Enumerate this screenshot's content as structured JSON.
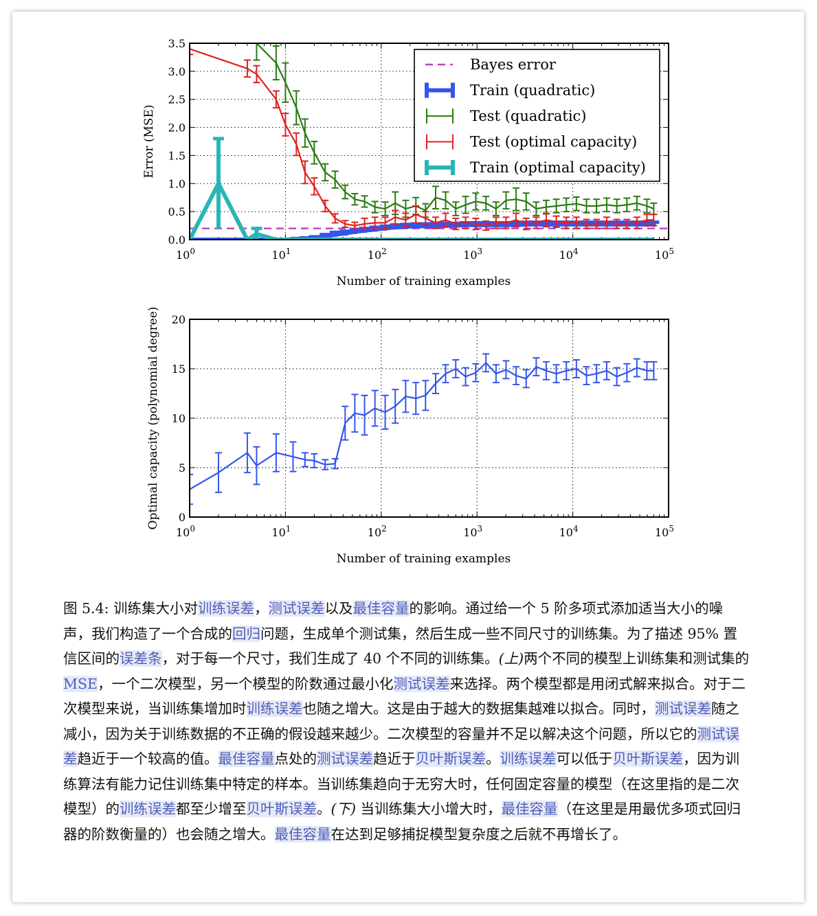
{
  "chart_data": [
    {
      "type": "line",
      "xscale": "log",
      "xlim": [
        1,
        100000
      ],
      "ylim": [
        0,
        3.5
      ],
      "xlabel": "Number of training examples",
      "ylabel": "Error (MSE)",
      "grid": true,
      "legend_position": "top-right",
      "xticks": [
        "10^0",
        "10^1",
        "10^2",
        "10^3",
        "10^4",
        "10^5"
      ],
      "yticks": [
        "0.0",
        "0.5",
        "1.0",
        "1.5",
        "2.0",
        "2.5",
        "3.0",
        "3.5"
      ],
      "bayes_error": 0.2,
      "series": [
        {
          "name": "Bayes error",
          "color": "#bf40bf",
          "style": "dashed"
        },
        {
          "name": "Train (quadratic)",
          "color": "#3355ee",
          "style": "thick",
          "x": [
            1,
            2,
            4,
            5,
            8,
            10,
            13,
            16,
            20,
            26,
            33,
            42,
            53,
            67,
            86,
            110,
            140,
            180,
            230,
            290,
            370,
            470,
            600,
            760,
            970,
            1240,
            1580,
            2010,
            2560,
            3260,
            4150,
            5280,
            6730,
            8570,
            10900,
            13900,
            17700,
            22600,
            28800,
            36700,
            46700,
            59400,
            70000
          ],
          "y": [
            0,
            0,
            0,
            0,
            0,
            0,
            0.01,
            0.02,
            0.03,
            0.06,
            0.09,
            0.11,
            0.14,
            0.16,
            0.18,
            0.2,
            0.22,
            0.23,
            0.24,
            0.24,
            0.25,
            0.25,
            0.25,
            0.26,
            0.26,
            0.26,
            0.26,
            0.26,
            0.26,
            0.27,
            0.27,
            0.27,
            0.27,
            0.27,
            0.27,
            0.27,
            0.27,
            0.27,
            0.27,
            0.27,
            0.27,
            0.27,
            0.27
          ],
          "err": [
            0,
            0,
            0,
            0,
            0,
            0,
            0.01,
            0.01,
            0.02,
            0.03,
            0.04,
            0.04,
            0.04,
            0.04,
            0.04,
            0.04,
            0.04,
            0.04,
            0.04,
            0.04,
            0.04,
            0.04,
            0.04,
            0.04,
            0.04,
            0.04,
            0.04,
            0.04,
            0.04,
            0.04,
            0.04,
            0.04,
            0.04,
            0.04,
            0.04,
            0.04,
            0.04,
            0.04,
            0.04,
            0.04,
            0.04,
            0.04,
            0.04
          ]
        },
        {
          "name": "Test (quadratic)",
          "color": "#2a7a12",
          "style": "errorbar",
          "x": [
            4,
            5,
            8,
            10,
            13,
            16,
            20,
            26,
            33,
            42,
            53,
            67,
            86,
            110,
            140,
            180,
            230,
            290,
            370,
            470,
            600,
            760,
            970,
            1240,
            1580,
            2010,
            2560,
            3260,
            4150,
            5280,
            6730,
            8570,
            10900,
            13900,
            17700,
            22600,
            28800,
            36700,
            46700,
            59400,
            70000
          ],
          "y": [
            4.2,
            3.5,
            3.15,
            2.8,
            2.35,
            1.9,
            1.55,
            1.2,
            1.07,
            0.85,
            0.72,
            0.68,
            0.58,
            0.55,
            0.65,
            0.55,
            0.6,
            0.52,
            0.75,
            0.7,
            0.55,
            0.62,
            0.68,
            0.65,
            0.55,
            0.7,
            0.72,
            0.68,
            0.55,
            0.58,
            0.6,
            0.62,
            0.64,
            0.6,
            0.6,
            0.62,
            0.6,
            0.62,
            0.65,
            0.6,
            0.55
          ],
          "err": [
            0.4,
            0.3,
            0.3,
            0.35,
            0.3,
            0.25,
            0.2,
            0.15,
            0.15,
            0.12,
            0.1,
            0.1,
            0.1,
            0.12,
            0.2,
            0.15,
            0.15,
            0.12,
            0.2,
            0.15,
            0.12,
            0.15,
            0.15,
            0.12,
            0.12,
            0.15,
            0.2,
            0.15,
            0.12,
            0.12,
            0.12,
            0.12,
            0.12,
            0.12,
            0.12,
            0.12,
            0.12,
            0.12,
            0.12,
            0.12,
            0.1
          ]
        },
        {
          "name": "Test (optimal capacity)",
          "color": "#e02020",
          "style": "errorbar",
          "x": [
            1,
            4,
            5,
            8,
            10,
            13,
            16,
            20,
            26,
            33,
            42,
            53,
            67,
            86,
            110,
            140,
            180,
            230,
            290,
            370,
            470,
            600,
            760,
            970,
            1240,
            1580,
            2010,
            2560,
            3260,
            4150,
            5280,
            6730,
            8570,
            10900,
            13900,
            17700,
            22600,
            28800,
            36700,
            46700,
            59400,
            70000
          ],
          "y": [
            3.4,
            3.05,
            2.95,
            2.5,
            2.05,
            1.7,
            1.2,
            0.95,
            0.6,
            0.38,
            0.28,
            0.25,
            0.28,
            0.3,
            0.3,
            0.4,
            0.35,
            0.45,
            0.38,
            0.3,
            0.35,
            0.28,
            0.3,
            0.28,
            0.25,
            0.3,
            0.3,
            0.35,
            0.28,
            0.3,
            0.35,
            0.32,
            0.3,
            0.3,
            0.28,
            0.28,
            0.3,
            0.28,
            0.28,
            0.3,
            0.35,
            0.35
          ],
          "err": [
            0.1,
            0.15,
            0.15,
            0.15,
            0.2,
            0.2,
            0.2,
            0.15,
            0.1,
            0.08,
            0.06,
            0.06,
            0.1,
            0.1,
            0.1,
            0.12,
            0.12,
            0.15,
            0.12,
            0.1,
            0.12,
            0.1,
            0.1,
            0.1,
            0.08,
            0.1,
            0.1,
            0.12,
            0.1,
            0.1,
            0.12,
            0.1,
            0.1,
            0.1,
            0.08,
            0.08,
            0.1,
            0.08,
            0.08,
            0.1,
            0.1,
            0.1
          ]
        },
        {
          "name": "Train (optimal capacity)",
          "color": "#2ab5b5",
          "style": "thick",
          "x": [
            1,
            2,
            4,
            5,
            8,
            10,
            13,
            16,
            20,
            26,
            33,
            42,
            53,
            67,
            86,
            110,
            140,
            180,
            230,
            290,
            370,
            470,
            600,
            760,
            970,
            1240,
            1580,
            2010,
            2560,
            3260,
            4150,
            5280,
            6730,
            8570,
            10900,
            13900,
            17700,
            22600,
            28800,
            36700,
            46700,
            59400,
            70000
          ],
          "y": [
            0,
            1.0,
            0,
            0.1,
            0,
            0,
            0,
            0,
            0,
            0,
            0,
            0,
            0,
            0,
            0,
            0,
            0,
            0,
            0,
            0,
            0,
            0,
            0,
            0,
            0,
            0,
            0,
            0,
            0,
            0,
            0,
            0,
            0,
            0,
            0,
            0,
            0,
            0,
            0,
            0,
            0,
            0,
            0
          ],
          "err": [
            0,
            0.8,
            0,
            0.1,
            0,
            0,
            0,
            0,
            0,
            0,
            0,
            0,
            0,
            0,
            0,
            0,
            0,
            0,
            0,
            0,
            0,
            0,
            0,
            0,
            0,
            0,
            0,
            0,
            0,
            0,
            0,
            0,
            0,
            0,
            0,
            0,
            0,
            0,
            0,
            0,
            0,
            0,
            0
          ]
        }
      ]
    },
    {
      "type": "line",
      "xscale": "log",
      "xlim": [
        1,
        100000
      ],
      "ylim": [
        0,
        20
      ],
      "xlabel": "Number of training examples",
      "ylabel": "Optimal capacity (polynomial degree)",
      "grid": true,
      "xticks": [
        "10^0",
        "10^1",
        "10^2",
        "10^3",
        "10^4",
        "10^5"
      ],
      "yticks": [
        "0",
        "5",
        "10",
        "15",
        "20"
      ],
      "series": [
        {
          "color": "#3355ee",
          "x": [
            1,
            2,
            4,
            5,
            8,
            12,
            16,
            20,
            26,
            33,
            42,
            53,
            67,
            86,
            110,
            140,
            180,
            230,
            290,
            370,
            470,
            600,
            760,
            970,
            1240,
            1580,
            2010,
            2560,
            3260,
            4150,
            5280,
            6730,
            8570,
            10900,
            13900,
            17700,
            22600,
            28800,
            36700,
            46700,
            59400,
            70000
          ],
          "y": [
            2.8,
            4.5,
            6.5,
            5.2,
            6.5,
            6.1,
            5.8,
            5.7,
            5.3,
            5.4,
            9.5,
            10.5,
            10.3,
            11.0,
            10.6,
            11.2,
            12.2,
            12.0,
            12.3,
            13.5,
            14.5,
            15.0,
            14.2,
            14.6,
            15.6,
            14.5,
            14.9,
            14.3,
            14.0,
            15.2,
            14.8,
            14.5,
            14.8,
            15.0,
            14.3,
            14.5,
            14.8,
            14.2,
            14.6,
            15.1,
            14.8,
            14.8
          ],
          "err": [
            1.5,
            2.0,
            2.0,
            1.9,
            1.9,
            1.5,
            0.7,
            0.7,
            0.5,
            0.5,
            1.7,
            1.9,
            2.0,
            1.8,
            1.7,
            1.7,
            1.6,
            1.6,
            1.5,
            1.0,
            0.9,
            0.9,
            0.9,
            0.9,
            0.9,
            0.9,
            0.9,
            0.9,
            0.9,
            0.9,
            0.9,
            0.9,
            0.9,
            0.9,
            0.9,
            0.9,
            0.9,
            0.9,
            0.9,
            0.9,
            0.9,
            0.9
          ]
        }
      ]
    }
  ],
  "caption": {
    "parts": [
      {
        "t": "图 5.4: 训练集大小对"
      },
      {
        "t": "训练误差",
        "h": true
      },
      {
        "t": "，"
      },
      {
        "t": "测试误差",
        "h": true
      },
      {
        "t": "以及"
      },
      {
        "t": "最佳容量",
        "h": true
      },
      {
        "t": "的影响。通过给一个 5 阶多项式添加适当大小的噪声，我们构造了一个合成的"
      },
      {
        "t": "回归",
        "h": true
      },
      {
        "t": "问题，生成单个测试集，然后生成一些不同尺寸的训练集。为了描述 95% 置信区间的"
      },
      {
        "t": "误差条",
        "h": true
      },
      {
        "t": "，对于每一个尺寸，我们生成了 40 个不同的训练集。"
      },
      {
        "t": "(上)",
        "i": true
      },
      {
        "t": "两个不同的模型上训练集和测试集的 "
      },
      {
        "t": "MSE",
        "h": true
      },
      {
        "t": "，一个二次模型，另一个模型的阶数通过最小化"
      },
      {
        "t": "测试误差",
        "h": true
      },
      {
        "t": "来选择。两个模型都是用闭式解来拟合。对于二次模型来说，当训练集增加时"
      },
      {
        "t": "训练误差",
        "h": true
      },
      {
        "t": "也随之增大。这是由于越大的数据集越难以拟合。同时，"
      },
      {
        "t": "测试误差",
        "h": true
      },
      {
        "t": "随之减小，因为关于训练数据的不正确的假设越来越少。二次模型的容量并不足以解决这个问题，所以它的"
      },
      {
        "t": "测试误差",
        "h": true
      },
      {
        "t": "趋近于一个较高的值。"
      },
      {
        "t": "最佳容量",
        "h": true
      },
      {
        "t": "点处的"
      },
      {
        "t": "测试误差",
        "h": true
      },
      {
        "t": "趋近于"
      },
      {
        "t": "贝叶斯误差",
        "h": true
      },
      {
        "t": "。"
      },
      {
        "t": "训练误差",
        "h": true
      },
      {
        "t": "可以低于"
      },
      {
        "t": "贝叶斯误差",
        "h": true
      },
      {
        "t": "，因为训练算法有能力记住训练集中特定的样本。当训练集趋向于无穷大时，任何固定容量的模型（在这里指的是二次模型）的"
      },
      {
        "t": "训练误差",
        "h": true
      },
      {
        "t": "都至少增至"
      },
      {
        "t": "贝叶斯误差",
        "h": true
      },
      {
        "t": "。"
      },
      {
        "t": "(下)",
        "i": true
      },
      {
        "t": " 当训练集大小增大时，"
      },
      {
        "t": "最佳容量",
        "h": true
      },
      {
        "t": "（在这里是用最优多项式回归器的阶数衡量的）也会随之增大。"
      },
      {
        "t": "最佳容量",
        "h": true
      },
      {
        "t": "在达到足够捕捉模型复杂度之后就不再增长了。"
      }
    ]
  }
}
